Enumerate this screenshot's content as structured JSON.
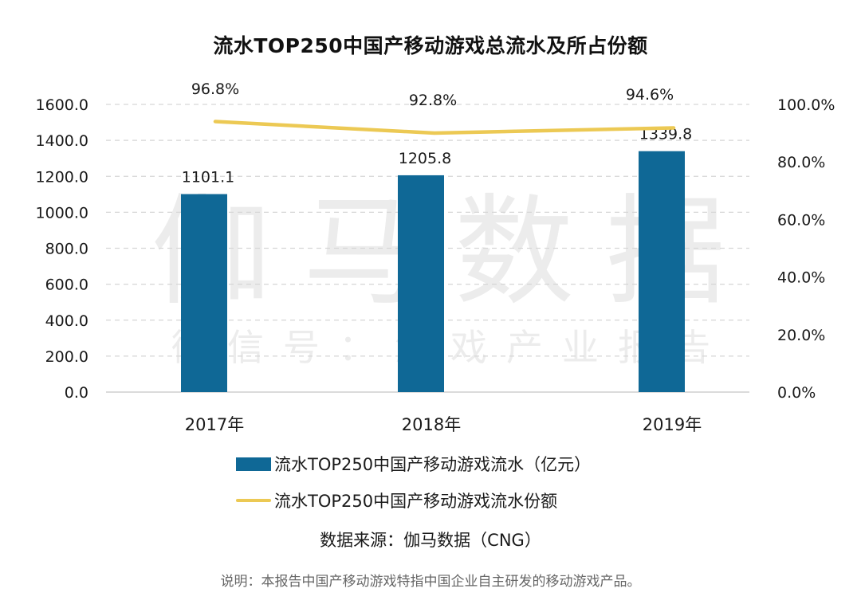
{
  "chart_data": {
    "type": "bar",
    "title": "流水TOP250中国产移动游戏总流水及所占份额",
    "categories": [
      "2017年",
      "2018年",
      "2019年"
    ],
    "series": [
      {
        "name": "流水TOP250中国产移动游戏流水（亿元）",
        "type": "bar",
        "axis": "left",
        "color": "#0f6896",
        "values": [
          1101.1,
          1205.8,
          1339.8
        ],
        "labels": [
          "1101.1",
          "1205.8",
          "1339.8"
        ]
      },
      {
        "name": "流水TOP250中国产移动游戏流水份额",
        "type": "line",
        "axis": "right",
        "color": "#ecc954",
        "values": [
          96.8,
          92.8,
          94.6
        ],
        "labels": [
          "96.8%",
          "92.8%",
          "94.6%"
        ]
      }
    ],
    "left_axis": {
      "ylim": [
        0,
        1600
      ],
      "ticks": [
        "0.0",
        "200.0",
        "400.0",
        "600.0",
        "800.0",
        "1000.0",
        "1200.0",
        "1400.0",
        "1600.0"
      ]
    },
    "right_axis": {
      "ylim": [
        0,
        100
      ],
      "ticks": [
        "0.0%",
        "20.0%",
        "40.0%",
        "60.0%",
        "80.0%",
        "100.0%"
      ]
    },
    "grid": true,
    "legend_placement": "bottom",
    "watermark": [
      "伽马数据",
      "微信号：游戏产业报告"
    ]
  },
  "legend": {
    "bar_label": "流水TOP250中国产移动游戏流水（亿元）",
    "line_label": "流水TOP250中国产移动游戏流水份额"
  },
  "source": "数据来源：伽马数据（CNG）",
  "note": "说明：本报告中国产移动游戏特指中国企业自主研发的移动游戏产品。"
}
